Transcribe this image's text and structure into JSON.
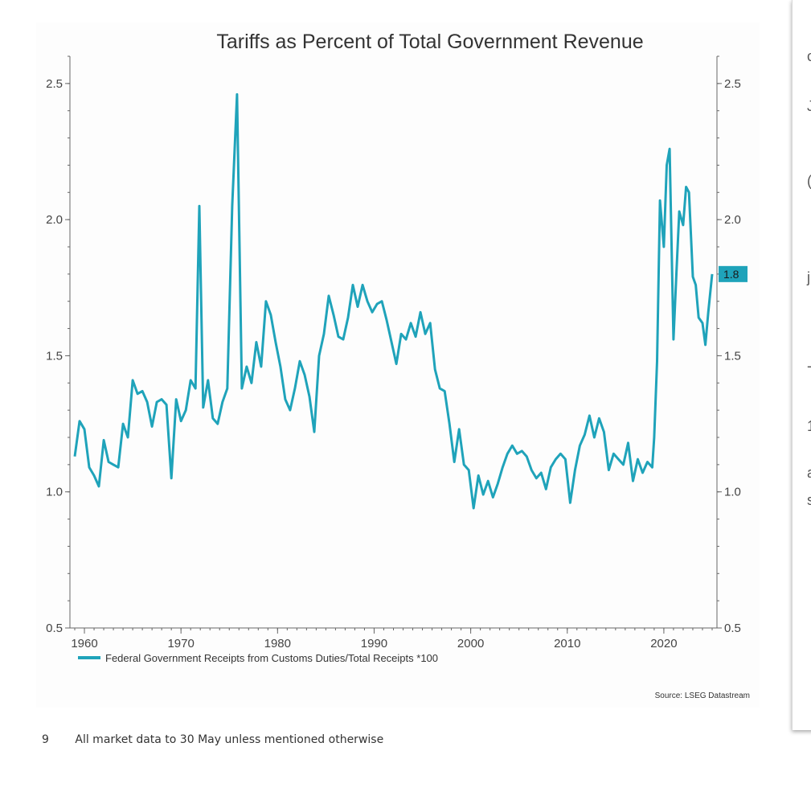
{
  "chart_data": {
    "type": "line",
    "title": "Tariffs as Percent of Total Government Revenue",
    "xlim": [
      1958.5,
      2025.5
    ],
    "ylim": [
      0.5,
      2.6
    ],
    "xticks": [
      "1960",
      "1970",
      "1980",
      "1990",
      "2000",
      "2010",
      "2020"
    ],
    "xtick_values": [
      1960,
      1970,
      1980,
      1990,
      2000,
      2010,
      2020
    ],
    "yticks": [
      "0.5",
      "1.0",
      "1.5",
      "2.0",
      "2.5"
    ],
    "ytick_values": [
      0.5,
      1.0,
      1.5,
      2.0,
      2.5
    ],
    "grid": false,
    "legend_position": "bottom-left",
    "series": [
      {
        "name": "Federal Government Receipts from Customs Duties/Total Receipts *100",
        "color": "#1fa3ba",
        "end_label": "1.8",
        "x": [
          1959.0,
          1959.5,
          1960.0,
          1960.5,
          1961.0,
          1961.5,
          1962.0,
          1962.5,
          1963.0,
          1963.5,
          1964.0,
          1964.5,
          1965.0,
          1965.5,
          1966.0,
          1966.5,
          1967.0,
          1967.5,
          1968.0,
          1968.5,
          1969.0,
          1969.5,
          1970.0,
          1970.5,
          1971.0,
          1971.5,
          1971.9,
          1972.3,
          1972.8,
          1973.3,
          1973.8,
          1974.3,
          1974.8,
          1975.3,
          1975.8,
          1976.3,
          1976.8,
          1977.3,
          1977.8,
          1978.3,
          1978.8,
          1979.3,
          1979.8,
          1980.3,
          1980.8,
          1981.3,
          1981.8,
          1982.3,
          1982.8,
          1983.3,
          1983.8,
          1984.3,
          1984.8,
          1985.3,
          1985.8,
          1986.3,
          1986.8,
          1987.3,
          1987.8,
          1988.3,
          1988.8,
          1989.3,
          1989.8,
          1990.3,
          1990.8,
          1991.3,
          1991.8,
          1992.3,
          1992.8,
          1993.3,
          1993.8,
          1994.3,
          1994.8,
          1995.3,
          1995.8,
          1996.3,
          1996.8,
          1997.3,
          1997.8,
          1998.3,
          1998.8,
          1999.3,
          1999.8,
          2000.3,
          2000.8,
          2001.3,
          2001.8,
          2002.3,
          2002.8,
          2003.3,
          2003.8,
          2004.3,
          2004.8,
          2005.3,
          2005.8,
          2006.3,
          2006.8,
          2007.3,
          2007.8,
          2008.3,
          2008.8,
          2009.3,
          2009.8,
          2010.3,
          2010.8,
          2011.3,
          2011.8,
          2012.3,
          2012.8,
          2013.3,
          2013.8,
          2014.3,
          2014.8,
          2015.3,
          2015.8,
          2016.3,
          2016.8,
          2017.3,
          2017.8,
          2018.3,
          2018.8,
          2019.0,
          2019.3,
          2019.6,
          2020.0,
          2020.3,
          2020.6,
          2021.0,
          2021.3,
          2021.6,
          2022.0,
          2022.3,
          2022.6,
          2023.0,
          2023.3,
          2023.6,
          2024.0,
          2024.3,
          2024.6,
          2025.0
        ],
        "y": [
          1.13,
          1.26,
          1.23,
          1.09,
          1.06,
          1.02,
          1.19,
          1.11,
          1.1,
          1.09,
          1.25,
          1.2,
          1.41,
          1.36,
          1.37,
          1.33,
          1.24,
          1.33,
          1.34,
          1.32,
          1.05,
          1.34,
          1.26,
          1.3,
          1.41,
          1.38,
          2.05,
          1.31,
          1.41,
          1.27,
          1.25,
          1.33,
          1.38,
          2.05,
          2.46,
          1.38,
          1.46,
          1.4,
          1.55,
          1.46,
          1.7,
          1.65,
          1.55,
          1.46,
          1.34,
          1.3,
          1.38,
          1.48,
          1.43,
          1.35,
          1.22,
          1.5,
          1.58,
          1.72,
          1.65,
          1.57,
          1.56,
          1.64,
          1.76,
          1.68,
          1.76,
          1.7,
          1.66,
          1.69,
          1.7,
          1.63,
          1.55,
          1.47,
          1.58,
          1.56,
          1.62,
          1.57,
          1.66,
          1.58,
          1.62,
          1.45,
          1.38,
          1.37,
          1.25,
          1.11,
          1.23,
          1.1,
          1.08,
          0.94,
          1.06,
          0.99,
          1.04,
          0.98,
          1.03,
          1.09,
          1.14,
          1.17,
          1.14,
          1.15,
          1.13,
          1.08,
          1.05,
          1.07,
          1.01,
          1.09,
          1.12,
          1.14,
          1.12,
          0.96,
          1.08,
          1.17,
          1.21,
          1.28,
          1.2,
          1.27,
          1.22,
          1.08,
          1.14,
          1.12,
          1.1,
          1.18,
          1.04,
          1.12,
          1.07,
          1.11,
          1.09,
          1.2,
          1.48,
          2.07,
          1.9,
          2.2,
          2.26,
          1.56,
          1.8,
          2.03,
          1.98,
          2.12,
          2.1,
          1.79,
          1.76,
          1.64,
          1.62,
          1.54,
          1.66,
          1.8
        ]
      }
    ]
  },
  "source": "Source: LSEG Datastream",
  "footer": {
    "page_number": "9",
    "note": "All market data to 30 May unless mentioned otherwise"
  },
  "side_panel": {
    "fragments": [
      "c",
      "J",
      "(",
      "j",
      "-",
      "1",
      "a",
      "s"
    ]
  }
}
